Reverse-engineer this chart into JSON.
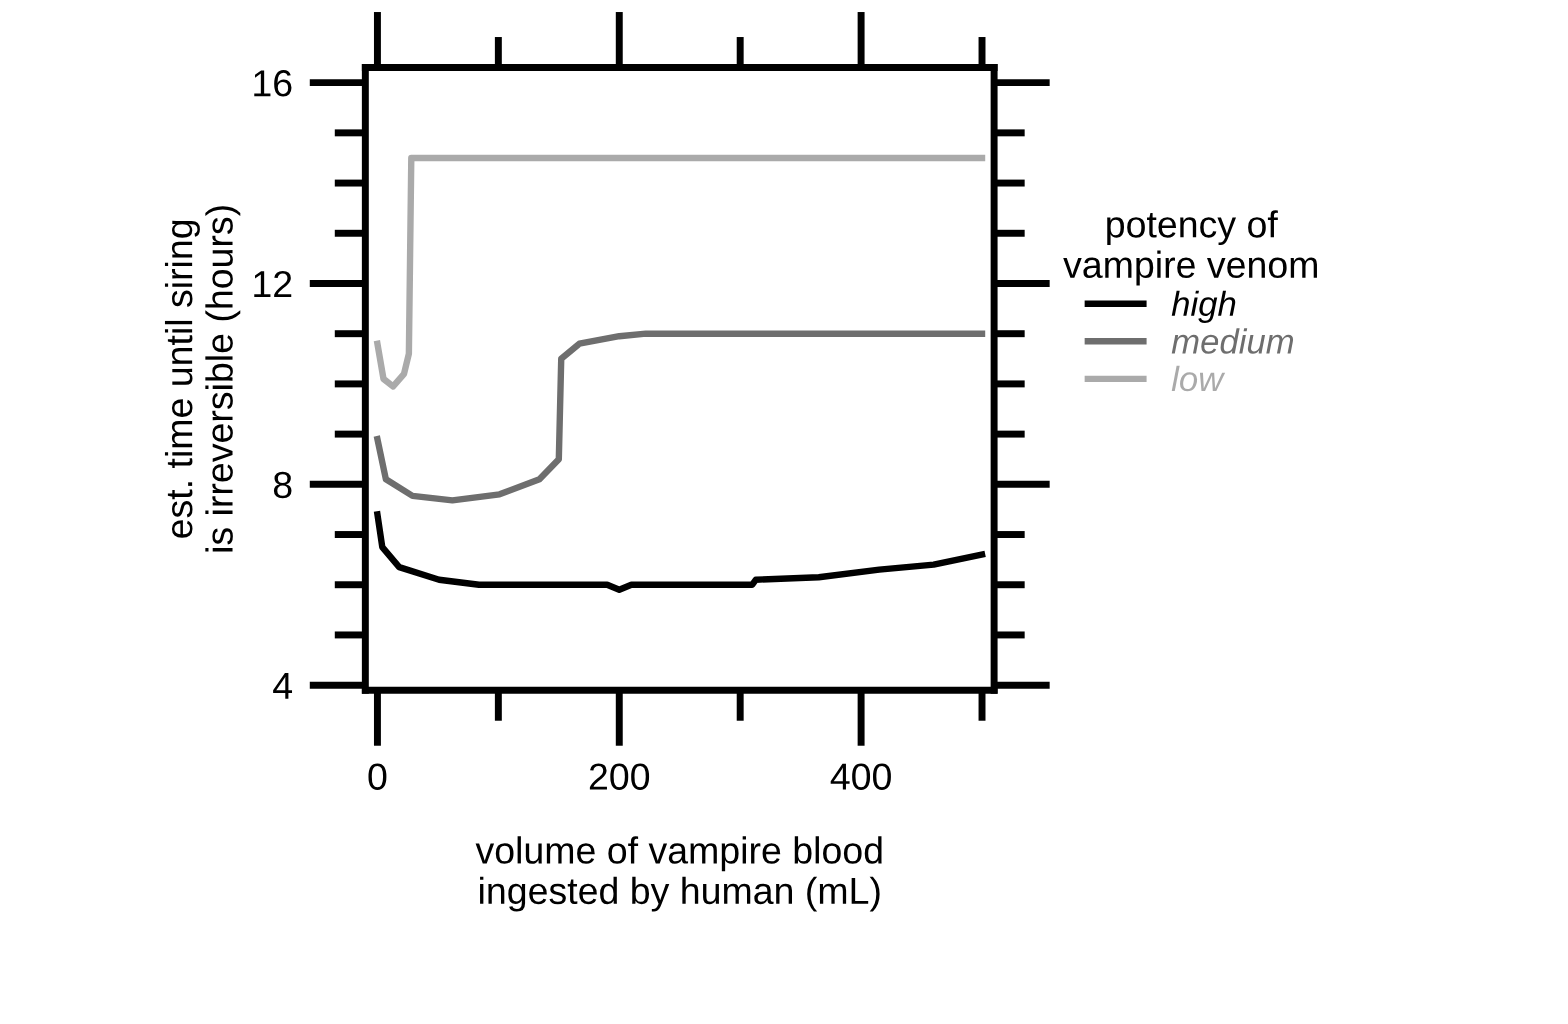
{
  "chart_data": {
    "type": "line",
    "xlabel": "volume of vampire blood\ningested by human (mL)",
    "ylabel": "est. time until siring\nis irreversible (hours)",
    "legend_title": "potency of\nvampire venom",
    "legend": "right",
    "line_style": "solid",
    "marker": "none",
    "grid": false,
    "xlim": [
      -10,
      510
    ],
    "ylim": [
      3.9,
      16.3
    ],
    "xticks": [
      0,
      {
        "value": 100,
        "label": null
      },
      200,
      {
        "value": 300,
        "label": null
      },
      400,
      {
        "value": 500,
        "label": null
      }
    ],
    "yticks": [
      4,
      {
        "value": 5,
        "label": null
      },
      {
        "value": 6,
        "label": null
      },
      {
        "value": 7,
        "label": null
      },
      8,
      {
        "value": 9,
        "label": null
      },
      {
        "value": 10,
        "label": null
      },
      {
        "value": 11,
        "label": null
      },
      12,
      {
        "value": 13,
        "label": null
      },
      {
        "value": 14,
        "label": null
      },
      {
        "value": 15,
        "label": null
      },
      16
    ],
    "series": [
      {
        "name": "high",
        "color": "#000000",
        "x": [
          0,
          4,
          18,
          51,
          84,
          150,
          190,
          200,
          210,
          250,
          310,
          313,
          365,
          415,
          460,
          500
        ],
        "values": [
          7.4,
          6.75,
          6.35,
          6.1,
          6.0,
          6.0,
          6.0,
          5.9,
          6.0,
          6.0,
          6.0,
          6.1,
          6.15,
          6.3,
          6.4,
          6.6
        ]
      },
      {
        "name": "medium",
        "color": "#6e6e6e",
        "x": [
          0,
          7,
          29,
          62,
          101,
          134,
          150,
          152,
          167,
          200,
          222,
          300,
          400,
          500
        ],
        "values": [
          8.9,
          8.1,
          7.77,
          7.68,
          7.8,
          8.1,
          8.5,
          10.5,
          10.8,
          10.95,
          11.0,
          11.0,
          11.0,
          11.0
        ]
      },
      {
        "name": "low",
        "color": "#aaaaaa",
        "x": [
          0,
          5,
          13,
          22,
          26,
          28,
          100,
          200,
          300,
          400,
          500
        ],
        "values": [
          10.8,
          10.1,
          9.95,
          10.2,
          10.6,
          14.5,
          14.5,
          14.5,
          14.5,
          14.5,
          14.5
        ]
      }
    ]
  }
}
